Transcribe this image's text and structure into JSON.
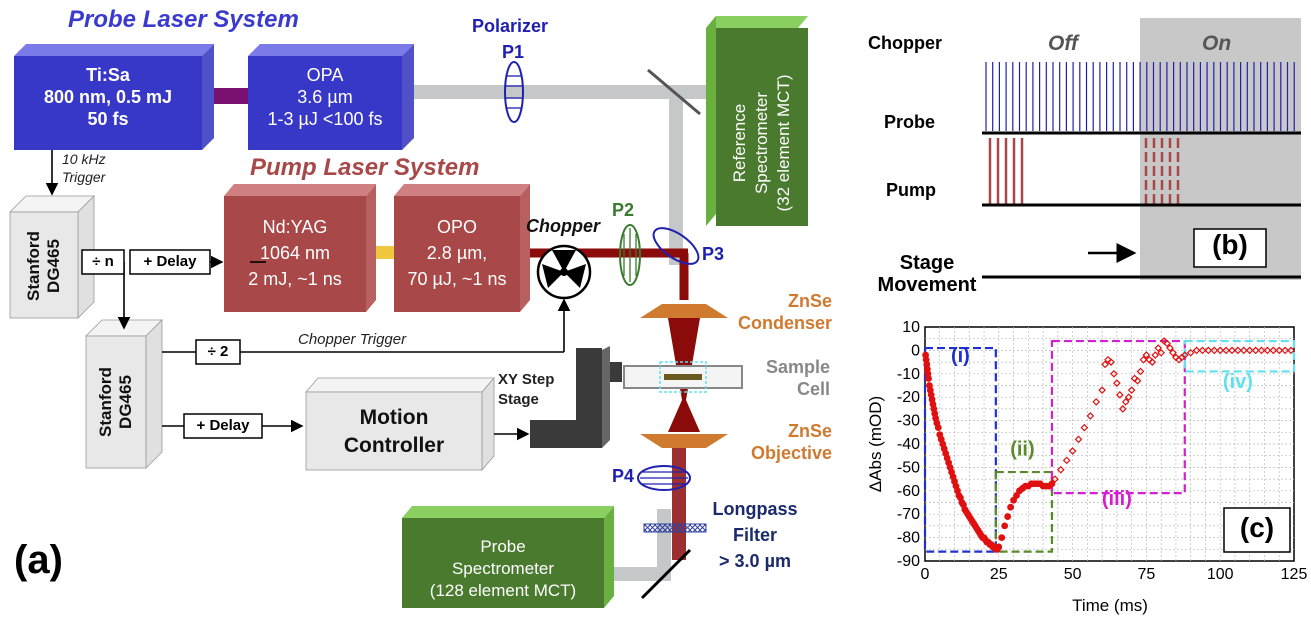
{
  "panel_a": {
    "label": "(a)",
    "probe_system_title": "Probe Laser System",
    "pump_system_title": "Pump Laser System",
    "tisa": [
      "Ti:Sa",
      "800 nm, 0.5 mJ",
      "50 fs"
    ],
    "opa": [
      "OPA",
      "3.6 µm",
      "1-3 µJ <100 fs"
    ],
    "polarizer_label": "Polarizer",
    "p1": "P1",
    "p2": "P2",
    "p3": "P3",
    "p4": "P4",
    "ref_spec": [
      "Reference",
      "Spectrometer",
      "(32 element MCT)"
    ],
    "trigger": [
      "10 kHz",
      "Trigger"
    ],
    "stanford1": [
      "Stanford",
      "DG465"
    ],
    "stanford2": [
      "Stanford",
      "DG465"
    ],
    "div_n": "÷ n",
    "delay1": "+ Delay",
    "delay2": "+ Delay",
    "div2": "÷ 2",
    "chopper_trigger": "Chopper Trigger",
    "ndyag": [
      "Nd:YAG",
      "1064 nm",
      "2 mJ, ~1 ns"
    ],
    "opo": [
      "OPO",
      "2.8 µm,",
      "70 µJ, ~1 ns"
    ],
    "chopper": "Chopper",
    "condenser": [
      "ZnSe",
      "Condenser"
    ],
    "sample_cell": [
      "Sample",
      "Cell"
    ],
    "xy_stage": [
      "XY Step",
      "Stage"
    ],
    "objective": [
      "ZnSe",
      "Objective"
    ],
    "motion": [
      "Motion",
      "Controller"
    ],
    "longpass": [
      "Longpass",
      "Filter",
      "> 3.0 µm"
    ],
    "probe_spec": [
      "Probe",
      "Spectrometer",
      "(128 element MCT)"
    ],
    "colors": {
      "probe_blue": "#3a3ad0",
      "pump_red": "#a94848",
      "green": "#4a7a2e",
      "orange": "#d07a30",
      "beam_grey": "#c4c8c8",
      "beam_red": "#8b0a0a",
      "polarizer_blue": "#2020b0",
      "polarizer_green": "#3a7a2e"
    }
  },
  "panel_b": {
    "label": "(b)",
    "chopper": "Chopper",
    "probe": "Probe",
    "pump": "Pump",
    "stage": [
      "Stage",
      "Movement"
    ],
    "off": "Off",
    "on": "On"
  },
  "panel_c": {
    "label": "(c)",
    "regions": [
      "(i)",
      "(ii)",
      "(iii)",
      "(iv)"
    ],
    "region_colors": [
      "#2030d0",
      "#5a8a2a",
      "#d020d0",
      "#60e0f0"
    ]
  },
  "chart_data": {
    "type": "scatter",
    "xlabel": "Time (ms)",
    "ylabel": "ΔAbs (mOD)",
    "xlim": [
      0,
      125
    ],
    "ylim": [
      -90,
      10
    ],
    "xticks": [
      "0",
      "25",
      "50",
      "75",
      "100",
      "125"
    ],
    "yticks": [
      "10",
      "0",
      "-10",
      "-20",
      "-30",
      "-40",
      "-50",
      "-60",
      "-70",
      "-80",
      "-90"
    ],
    "grid": true,
    "series": [
      {
        "x": [
          0.2,
          0.4,
          0.6,
          0.8,
          1.0,
          1.2,
          1.5,
          1.8,
          2.1,
          2.4,
          2.7,
          3.0,
          3.3,
          3.6,
          4.0,
          4.5,
          5.0,
          5.5,
          6.0,
          6.5,
          7.0,
          7.5,
          8.0,
          8.5,
          9.0,
          9.5,
          10.0,
          10.5,
          11.0,
          11.5,
          12.0,
          12.5,
          13.0,
          13.5,
          14.0,
          14.5,
          15.0,
          15.5,
          16.0,
          16.5,
          17.0,
          17.5,
          18.0,
          18.5,
          19.0,
          19.5,
          20.0,
          20.5,
          21.0,
          21.5,
          22.0,
          22.5,
          23.0,
          23.5,
          24.0,
          24.5,
          25.0,
          26.0,
          27.0,
          28.0,
          29.0,
          30.0,
          31.0,
          32.0,
          33.0,
          34.0,
          35.0,
          36.0,
          37.0,
          38.0,
          39.0,
          40.0,
          41.0,
          42.0,
          43.0,
          44.0,
          46.0,
          48.0,
          50.0,
          52.0,
          54.0,
          56.0,
          58.0,
          60.0,
          61.0,
          62.0,
          63.0,
          64.0,
          65.0,
          66.0,
          67.0,
          68.0,
          69.0,
          70.0,
          71.0,
          72.0,
          73.0,
          74.0,
          75.0,
          76.0,
          77.0,
          78.0,
          79.0,
          80.0,
          81.0,
          82.0,
          83.0,
          84.0,
          85.0,
          86.0,
          87.0,
          88.0,
          90.0,
          92.0,
          94.0,
          96.0,
          98.0,
          100.0,
          102.0,
          104.0,
          106.0,
          108.0,
          110.0,
          112.0,
          114.0,
          116.0,
          118.0,
          120.0,
          122.0,
          124.0
        ],
        "y": [
          -2,
          -4,
          -6,
          -8,
          -10,
          -12,
          -15,
          -17,
          -19,
          -21,
          -23,
          -25,
          -27,
          -29,
          -31,
          -33,
          -36,
          -38,
          -40,
          -42,
          -44,
          -46,
          -48,
          -50,
          -52,
          -54,
          -56,
          -58,
          -60,
          -62,
          -63,
          -65,
          -66,
          -68,
          -69,
          -70,
          -71,
          -72,
          -73,
          -74,
          -75,
          -76,
          -77,
          -78,
          -79,
          -80,
          -80,
          -81,
          -82,
          -82,
          -83,
          -83,
          -84,
          -84,
          -85,
          -85,
          -84,
          -80,
          -75,
          -71,
          -67,
          -64,
          -62,
          -60,
          -59,
          -58,
          -58,
          -57,
          -57,
          -57,
          -57,
          -58,
          -58,
          -58,
          -57,
          -55,
          -51,
          -47,
          -43,
          -38,
          -33,
          -28,
          -22,
          -17,
          -6,
          -4,
          -5,
          -10,
          -14,
          -19,
          -25,
          -22,
          -20,
          -17,
          -12,
          -13,
          -9,
          -4,
          -2,
          -4,
          -5,
          -2,
          1,
          -1,
          4,
          3,
          1,
          -1,
          -3,
          -4,
          -3,
          -2,
          -1,
          0,
          0,
          0,
          0,
          0,
          0,
          0,
          0,
          0,
          0,
          0,
          0,
          0,
          0,
          0,
          0,
          0
        ]
      }
    ]
  }
}
